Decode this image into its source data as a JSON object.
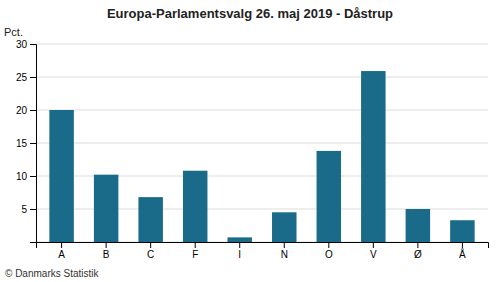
{
  "chart_data": {
    "type": "bar",
    "title": "Europa-Parlamentsvalg 26. maj 2019 - Dåstrup",
    "ylabel": "Pct.",
    "footer": "© Danmarks Statistik",
    "categories": [
      "A",
      "B",
      "C",
      "F",
      "I",
      "N",
      "O",
      "V",
      "Ø",
      "Å"
    ],
    "values": [
      20.0,
      10.2,
      6.8,
      10.8,
      0.7,
      4.5,
      13.8,
      25.9,
      5.0,
      3.3
    ],
    "color": "#1a6b8a",
    "ylim": [
      0,
      30
    ],
    "yticks": [
      {
        "value": 0,
        "label": null
      },
      5,
      10,
      15,
      20,
      25,
      30
    ],
    "grid": true
  }
}
